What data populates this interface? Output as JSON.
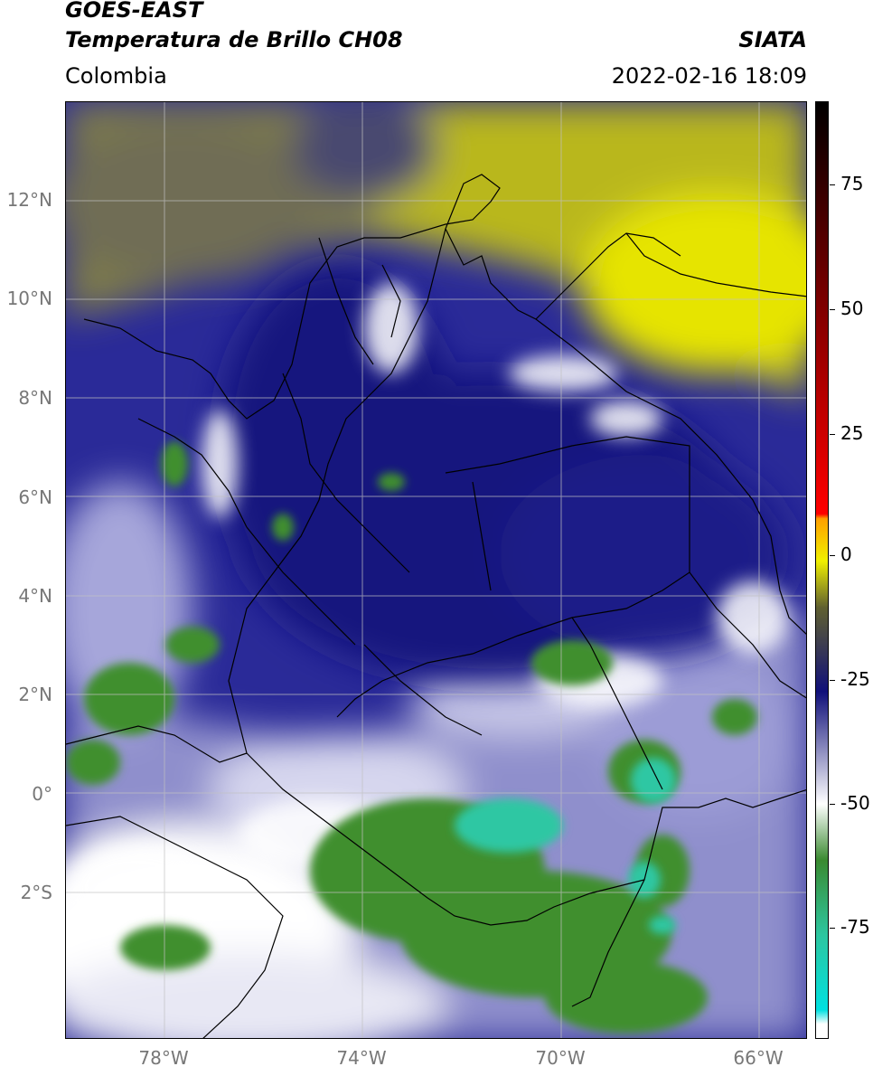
{
  "header": {
    "title_line1": "GOES-EAST",
    "title_line2": "Temperatura de Brillo CH08",
    "brand": "SIATA",
    "region": "Colombia",
    "timestamp": "2022-02-16 18:09"
  },
  "map": {
    "lat_labels": [
      "12°N",
      "10°N",
      "8°N",
      "6°N",
      "4°N",
      "2°N",
      "0°",
      "2°S"
    ],
    "lon_labels": [
      "78°W",
      "74°W",
      "70°W",
      "66°W"
    ],
    "colors": {
      "dry_yellow": "#d8d600",
      "dry_olive": "#8e8c3a",
      "cold_navy": "#14127a",
      "mid_blue": "#3a3aa8",
      "lavender": "#b9b9dc",
      "convective_green": "#3f8f2f",
      "deep_teal": "#2ec7a3",
      "border_color": "#000000",
      "grid_color": "#bbbbbb"
    }
  },
  "colorbar": {
    "ticks": [
      "75",
      "50",
      "25",
      "0",
      "-25",
      "-50",
      "-75"
    ],
    "stops": [
      "#000000",
      "#ff0000",
      "#ffa000",
      "#f0f000",
      "#606030",
      "#10107a",
      "#ffffff",
      "#3a8a30",
      "#2dc6a0",
      "#00e0e0",
      "#ffffff"
    ]
  }
}
